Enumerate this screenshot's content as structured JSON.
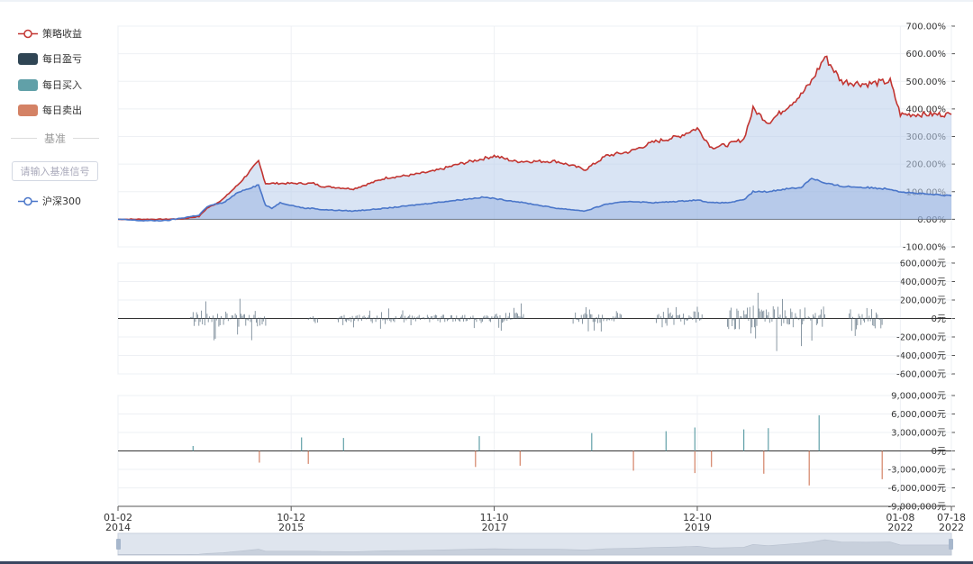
{
  "legend": {
    "items": [
      {
        "label": "策略收益",
        "kind": "line",
        "color": "#c23531"
      },
      {
        "label": "每日盈亏",
        "kind": "box",
        "color": "#2f4554"
      },
      {
        "label": "每日买入",
        "kind": "box",
        "color": "#61a0a8"
      },
      {
        "label": "每日卖出",
        "kind": "box",
        "color": "#d48265"
      }
    ],
    "benchmark_title": "基准",
    "benchmark_placeholder": "请输入基准信号",
    "benchmark_item": {
      "label": "沪深300",
      "color": "#4a76c9"
    }
  },
  "chart_data": [
    {
      "type": "area",
      "ylim": [
        -100,
        700
      ],
      "yticks": [
        "700.00%",
        "600.00%",
        "500.00%",
        "400.00%",
        "300.00%",
        "200.00%",
        "100.00%",
        "0.00%",
        "-100.00%"
      ],
      "ytick_values": [
        700,
        600,
        500,
        400,
        300,
        200,
        100,
        0,
        -100
      ],
      "x": [
        "2014-01-02",
        "2014-04-01",
        "2014-07-01",
        "2014-09-01",
        "2014-11-01",
        "2014-12-01",
        "2015-01-01",
        "2015-02-01",
        "2015-04-01",
        "2015-06-12",
        "2015-07-08",
        "2015-08-01",
        "2015-09-01",
        "2015-12-01",
        "2016-01-04",
        "2016-02-01",
        "2016-06-01",
        "2016-10-01",
        "2017-01-01",
        "2017-04-01",
        "2017-07-01",
        "2017-10-01",
        "2017-11-10",
        "2018-01-25",
        "2018-04-01",
        "2018-07-01",
        "2018-10-18",
        "2019-01-03",
        "2019-04-01",
        "2019-07-01",
        "2019-10-01",
        "2019-12-10",
        "2020-02-01",
        "2020-04-01",
        "2020-06-01",
        "2020-07-06",
        "2020-09-01",
        "2020-11-01",
        "2021-01-01",
        "2021-02-10",
        "2021-04-01",
        "2021-06-01",
        "2021-09-01",
        "2021-12-01",
        "2022-01-08",
        "2022-03-01",
        "2022-05-01",
        "2022-07-18"
      ],
      "series": [
        {
          "name": "策略收益",
          "color": "#c23531",
          "values": [
            0,
            0,
            0,
            2,
            10,
            40,
            55,
            75,
            130,
            210,
            130,
            130,
            130,
            130,
            130,
            120,
            110,
            150,
            160,
            175,
            200,
            220,
            230,
            210,
            210,
            210,
            180,
            230,
            245,
            280,
            300,
            330,
            260,
            270,
            290,
            400,
            350,
            400,
            450,
            500,
            590,
            500,
            490,
            500,
            380,
            380,
            380,
            380
          ]
        },
        {
          "name": "沪深300",
          "color": "#4a76c9",
          "values": [
            0,
            -5,
            -5,
            5,
            15,
            45,
            55,
            60,
            100,
            125,
            50,
            40,
            60,
            40,
            40,
            35,
            30,
            40,
            50,
            60,
            70,
            80,
            75,
            65,
            55,
            40,
            30,
            55,
            65,
            60,
            65,
            70,
            60,
            60,
            70,
            100,
            100,
            110,
            115,
            150,
            130,
            120,
            115,
            110,
            100,
            95,
            90,
            85
          ]
        }
      ]
    },
    {
      "type": "bar",
      "ylim": [
        -600000,
        600000
      ],
      "yticks": [
        "600,000元",
        "400,000元",
        "200,000元",
        "0元",
        "-200,000元",
        "-400,000元",
        "-600,000元"
      ],
      "ytick_values": [
        600000,
        400000,
        200000,
        0,
        -200000,
        -400000,
        -600000
      ],
      "series": [
        {
          "name": "每日盈亏",
          "color": "#2f4554",
          "clusters": [
            {
              "start": "2014-10-01",
              "end": "2015-07-10",
              "amp": 150000
            },
            {
              "start": "2015-12-15",
              "end": "2016-01-20",
              "amp": 90000
            },
            {
              "start": "2016-04-01",
              "end": "2017-11-01",
              "amp": 70000
            },
            {
              "start": "2017-11-01",
              "end": "2018-03-01",
              "amp": 110000
            },
            {
              "start": "2018-09-01",
              "end": "2019-03-01",
              "amp": 120000
            },
            {
              "start": "2019-07-01",
              "end": "2020-01-01",
              "amp": 130000
            },
            {
              "start": "2020-04-01",
              "end": "2021-04-01",
              "amp": 220000
            },
            {
              "start": "2021-07-01",
              "end": "2021-11-01",
              "amp": 230000
            }
          ]
        }
      ]
    },
    {
      "type": "bar",
      "ylim": [
        -9000000,
        9000000
      ],
      "yticks": [
        "9,000,000元",
        "6,000,000元",
        "3,000,000元",
        "0元",
        "-3,000,000元",
        "-6,000,000元",
        "-9,000,000元"
      ],
      "ytick_values": [
        9000000,
        6000000,
        3000000,
        0,
        -3000000,
        -6000000,
        -9000000
      ],
      "series": [
        {
          "name": "每日买入",
          "color": "#61a0a8",
          "x": [
            "2014-10-10",
            "2015-11-20",
            "2016-04-25",
            "2017-09-15",
            "2018-11-10",
            "2019-08-15",
            "2019-12-01",
            "2020-06-01",
            "2020-09-01",
            "2021-03-10"
          ],
          "values": [
            800000,
            2200000,
            2100000,
            2400000,
            2900000,
            3200000,
            3800000,
            3500000,
            3700000,
            5800000
          ]
        },
        {
          "name": "每日卖出",
          "color": "#d48265",
          "x": [
            "2015-06-15",
            "2015-12-15",
            "2017-09-01",
            "2018-02-15",
            "2019-04-15",
            "2019-12-01",
            "2020-02-01",
            "2020-08-15",
            "2021-02-01",
            "2021-11-01"
          ],
          "values": [
            -1900000,
            -2100000,
            -2600000,
            -2400000,
            -3200000,
            -3600000,
            -2600000,
            -3700000,
            -5600000,
            -4600000
          ]
        }
      ]
    }
  ],
  "x_axis": {
    "ticks": [
      {
        "date": "2014-01-02",
        "top": "01-02",
        "bottom": "2014"
      },
      {
        "date": "2015-10-12",
        "top": "10-12",
        "bottom": "2015"
      },
      {
        "date": "2017-11-10",
        "top": "11-10",
        "bottom": "2017"
      },
      {
        "date": "2019-12-10",
        "top": "12-10",
        "bottom": "2019"
      },
      {
        "date": "2022-01-08",
        "top": "01-08",
        "bottom": "2022"
      },
      {
        "date": "2022-07-18",
        "top": "07-18",
        "bottom": "2022"
      }
    ]
  },
  "data_zoom": {
    "start": 0,
    "end": 100
  }
}
